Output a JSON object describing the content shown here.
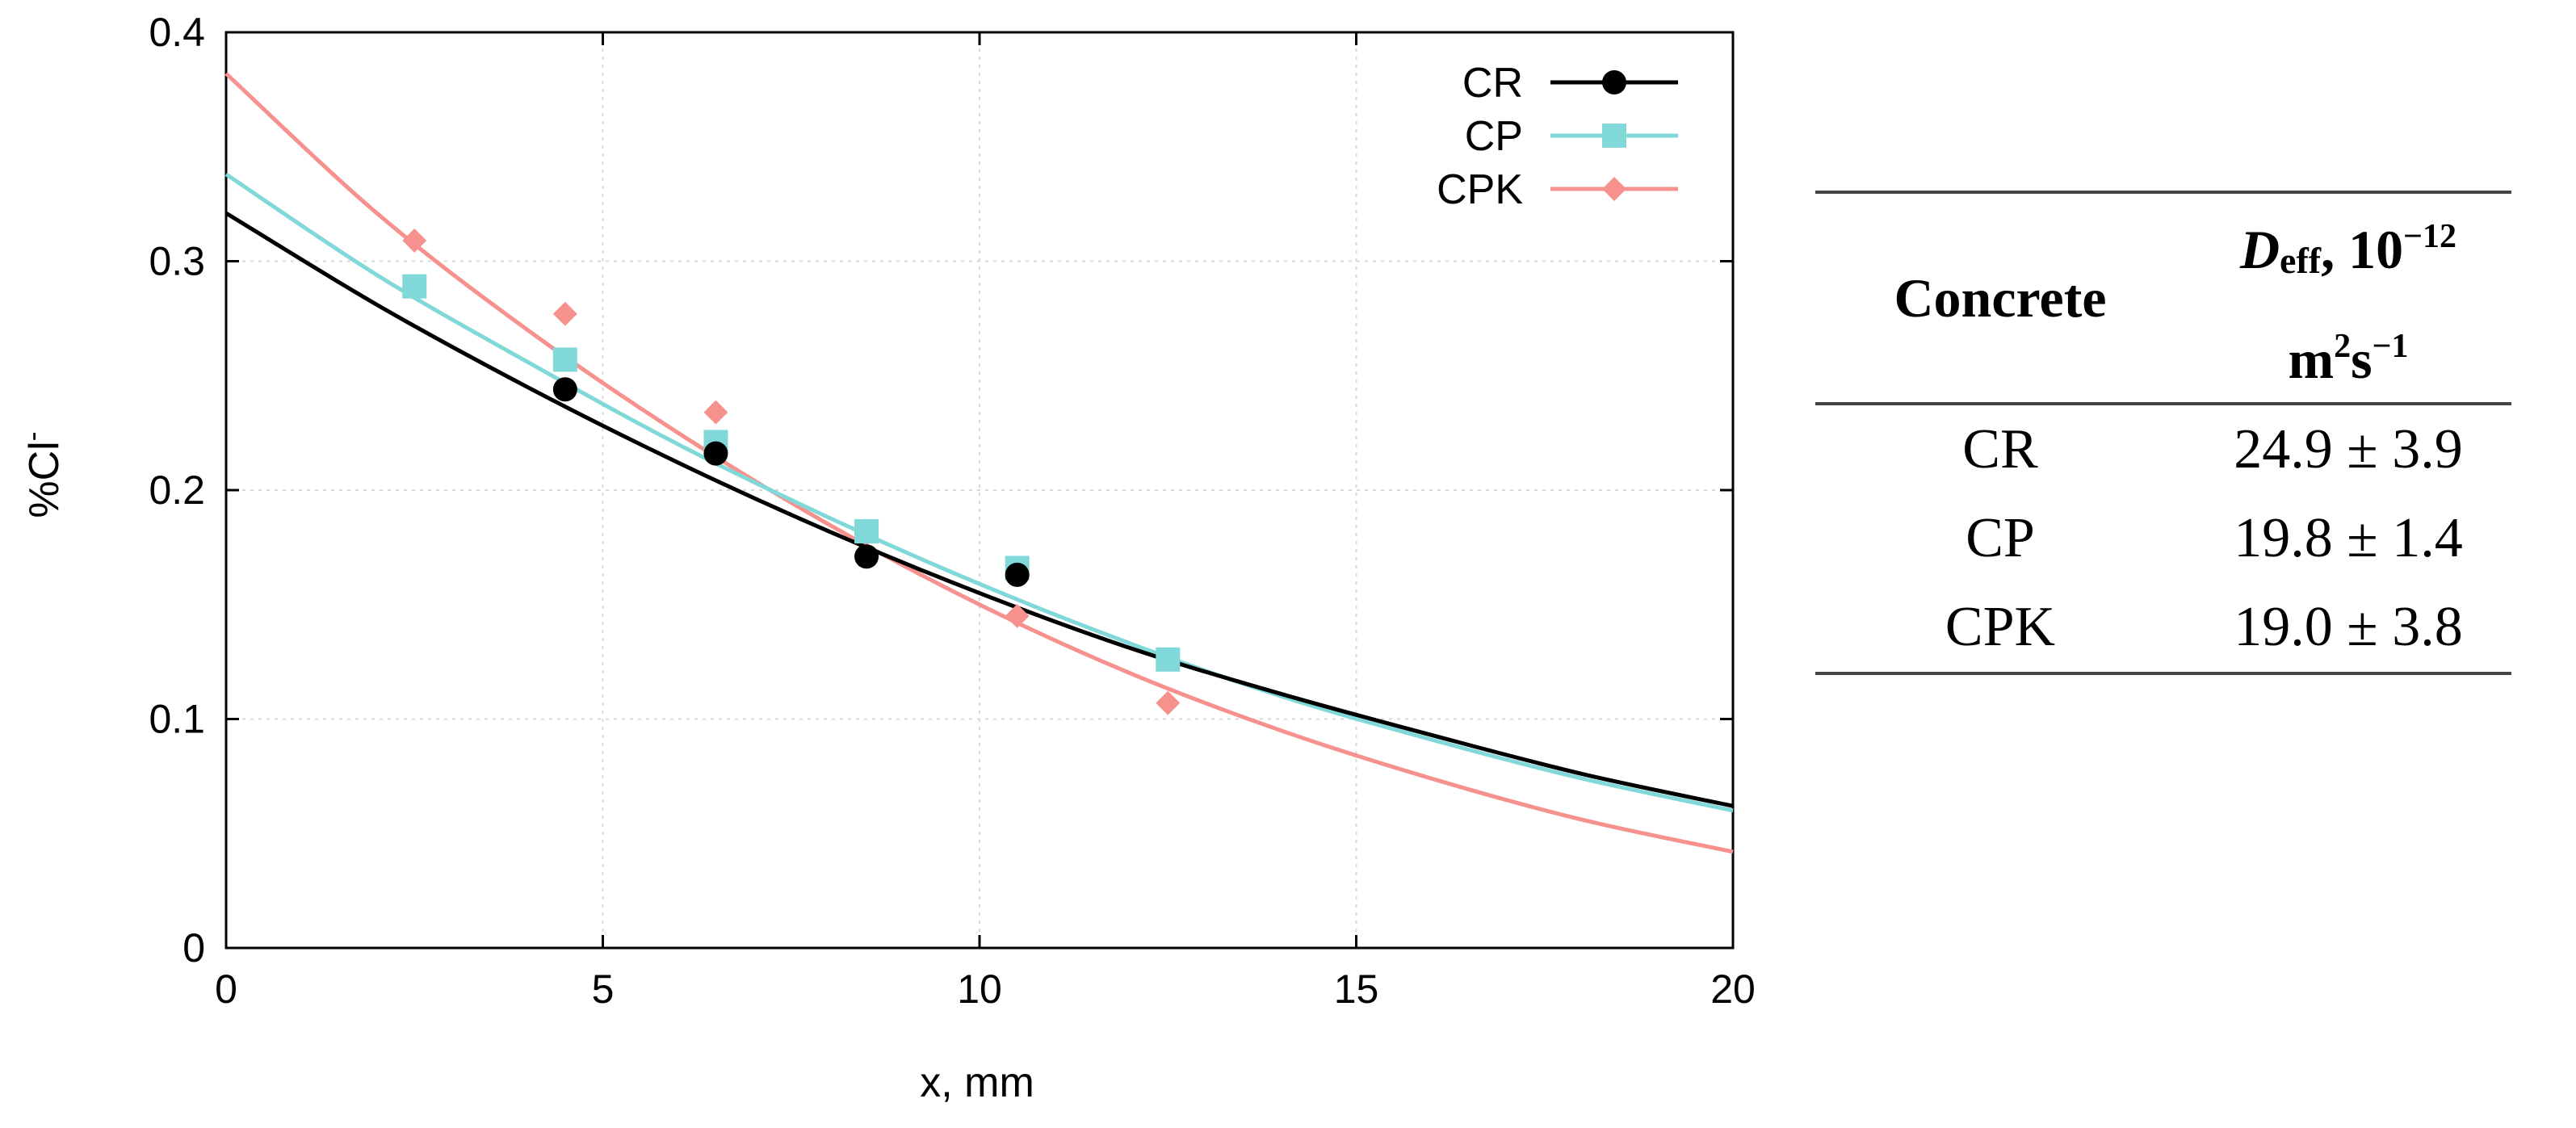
{
  "chart_data": {
    "type": "line",
    "xlabel": "x, mm",
    "ylabel": "%Cl",
    "ylabel_sup": "-",
    "xlim": [
      0,
      20
    ],
    "ylim": [
      0,
      0.4
    ],
    "x_ticks": [
      0,
      5,
      10,
      15,
      20
    ],
    "x_tick_labels": [
      "0",
      "5",
      "10",
      "15",
      "20"
    ],
    "y_ticks": [
      0,
      0.1,
      0.2,
      0.3,
      0.4
    ],
    "y_tick_labels": [
      "0",
      "0.1",
      "0.2",
      "0.3",
      "0.4"
    ],
    "grid": true,
    "legend_position": "top-right",
    "series": [
      {
        "name": "CR",
        "color": "#000000",
        "marker": "circle",
        "points_x": [
          4.5,
          6.5,
          8.5,
          10.5
        ],
        "points_y": [
          0.244,
          0.216,
          0.171,
          0.163
        ],
        "fit_x": [
          0,
          2,
          4,
          6,
          8,
          10,
          12,
          14,
          16,
          18,
          20
        ],
        "fit_y": [
          0.321,
          0.281,
          0.245,
          0.212,
          0.182,
          0.155,
          0.131,
          0.111,
          0.093,
          0.076,
          0.062
        ]
      },
      {
        "name": "CP",
        "color": "#80d8d8",
        "marker": "square",
        "points_x": [
          2.5,
          4.5,
          6.5,
          8.5,
          10.5,
          12.5
        ],
        "points_y": [
          0.289,
          0.257,
          0.221,
          0.182,
          0.166,
          0.126
        ],
        "fit_x": [
          0,
          2,
          4,
          6,
          8,
          10,
          12,
          14,
          16,
          18,
          20
        ],
        "fit_y": [
          0.338,
          0.294,
          0.256,
          0.22,
          0.188,
          0.159,
          0.133,
          0.11,
          0.091,
          0.074,
          0.06
        ]
      },
      {
        "name": "CPK",
        "color": "#f6918e",
        "marker": "diamond",
        "points_x": [
          2.5,
          4.5,
          6.5,
          8.5,
          10.5,
          12.5
        ],
        "points_y": [
          0.309,
          0.277,
          0.234,
          0.181,
          0.145,
          0.107
        ],
        "fit_x": [
          0,
          2,
          4,
          6,
          8,
          10,
          12,
          14,
          16,
          18,
          20
        ],
        "fit_y": [
          0.382,
          0.321,
          0.27,
          0.225,
          0.185,
          0.15,
          0.12,
          0.095,
          0.074,
          0.056,
          0.042
        ]
      }
    ]
  },
  "table": {
    "header_concrete": "Concrete",
    "header_deff_symbol": "D",
    "header_deff_sub": "eff",
    "header_deff_rest": ", 10",
    "header_deff_exp": "−12",
    "header_unit_m": "m",
    "header_unit_m_exp": "2",
    "header_unit_s": "s",
    "header_unit_s_exp": "−1",
    "rows": [
      {
        "concrete": "CR",
        "deff": "24.9 ± 3.9"
      },
      {
        "concrete": "CP",
        "deff": "19.8 ± 1.4"
      },
      {
        "concrete": "CPK",
        "deff": "19.0 ± 3.8"
      }
    ]
  }
}
